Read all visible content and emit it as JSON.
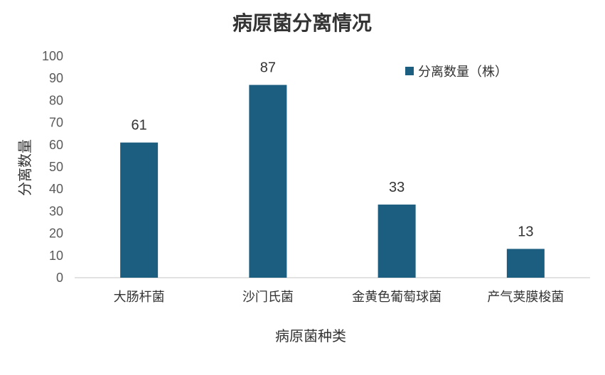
{
  "chart_data": {
    "type": "bar",
    "title": "病原菌分离情况",
    "xlabel": "病原菌种类",
    "ylabel": "分离数量",
    "categories": [
      "大肠杆菌",
      "沙门氏菌",
      "金黄色葡萄球菌",
      "产气荚膜梭菌"
    ],
    "series": [
      {
        "name": "分离数量（株）",
        "values": [
          61,
          87,
          33,
          13
        ],
        "color": "#1b5e7f"
      }
    ],
    "ylim": [
      0,
      100
    ],
    "yticks": [
      "0",
      "10",
      "20",
      "30",
      "40",
      "50",
      "60",
      "70",
      "80",
      "90",
      "100"
    ],
    "data_labels": [
      "61",
      "87",
      "33",
      "13"
    ],
    "grid": false,
    "legend_position": "top-right"
  }
}
